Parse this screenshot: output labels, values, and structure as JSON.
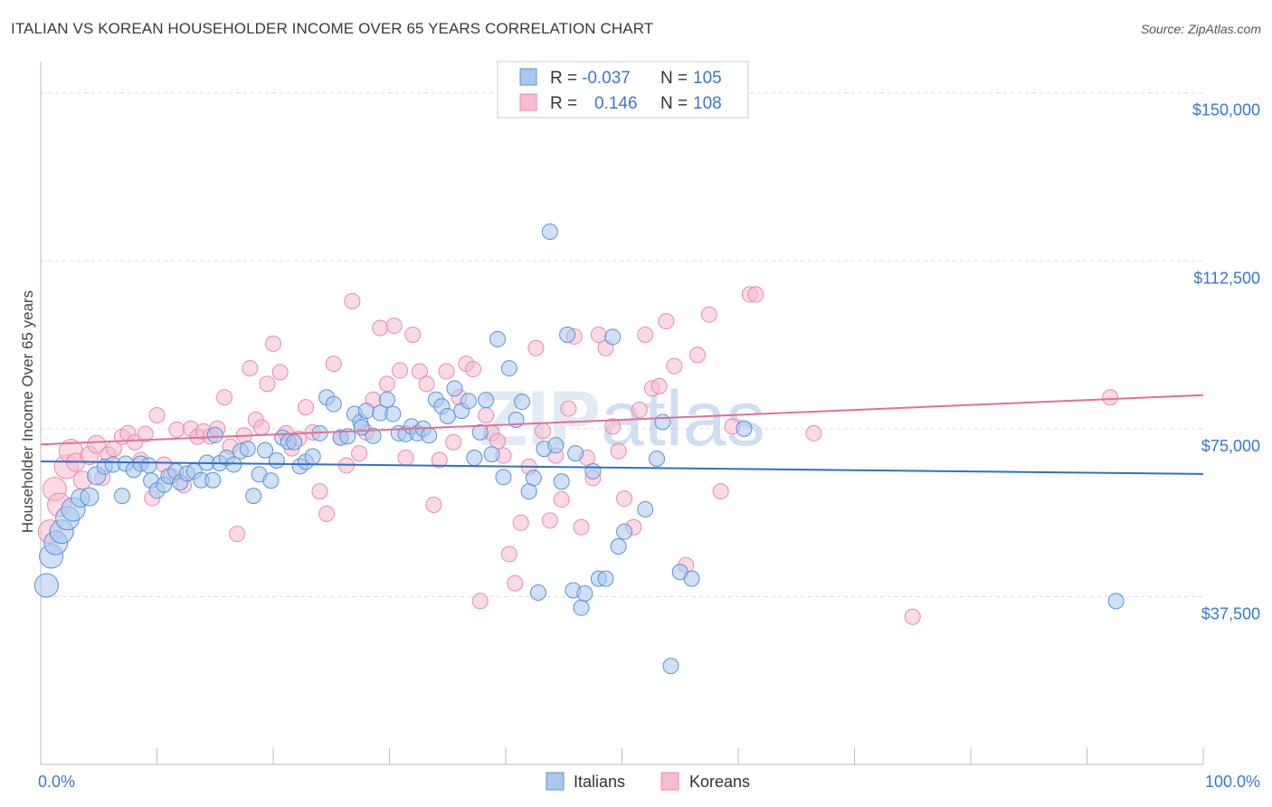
{
  "title": "ITALIAN VS KOREAN HOUSEHOLDER INCOME OVER 65 YEARS CORRELATION CHART",
  "source": "Source: ZipAtlas.com",
  "watermark": "ZIPatlas",
  "legend": {
    "r_label": "R =",
    "n_label": "N =",
    "italians": {
      "r": "-0.037",
      "n": "105"
    },
    "koreans": {
      "r": "0.146",
      "n": "108"
    }
  },
  "bottom_legend": {
    "italians": "Italians",
    "koreans": "Koreans"
  },
  "colors": {
    "italians_fill": "#a9c8f0",
    "italians_stroke": "#5b91d8",
    "italians_line": "#2f6fcb",
    "koreans_fill": "#f7bccf",
    "koreans_stroke": "#e98aab",
    "koreans_line": "#e0709a",
    "tick_text": "#3a78c9",
    "grid": "#dcdcdc"
  },
  "chart_data": {
    "type": "scatter",
    "title": "ITALIAN VS KOREAN HOUSEHOLDER INCOME OVER 65 YEARS CORRELATION CHART",
    "xlabel": "",
    "ylabel": "Householder Income Over 65 years",
    "xlim": [
      0,
      100
    ],
    "ylim": [
      0,
      155000
    ],
    "x_tick_labels": [
      "0.0%",
      "100.0%"
    ],
    "y_ticks": [
      37500,
      75000,
      112500,
      150000
    ],
    "y_tick_labels": [
      "$37,500",
      "$75,000",
      "$112,500",
      "$150,000"
    ],
    "grid": true,
    "series": [
      {
        "name": "Italians",
        "trend": [
          [
            0,
            67700
          ],
          [
            100,
            64900
          ]
        ],
        "points": [
          [
            0.5,
            40000
          ],
          [
            0.9,
            46500
          ],
          [
            1.3,
            49500
          ],
          [
            1.8,
            52000
          ],
          [
            2.3,
            55000
          ],
          [
            2.8,
            57000
          ],
          [
            3.4,
            59500
          ],
          [
            4.2,
            59800
          ],
          [
            4.8,
            64500
          ],
          [
            5.5,
            66500
          ],
          [
            6.2,
            67000
          ],
          [
            7.0,
            60000
          ],
          [
            7.3,
            67200
          ],
          [
            8.0,
            65800
          ],
          [
            8.6,
            67200
          ],
          [
            9.3,
            66800
          ],
          [
            9.5,
            63400
          ],
          [
            10.0,
            61200
          ],
          [
            10.6,
            62500
          ],
          [
            11.0,
            64400
          ],
          [
            11.6,
            65500
          ],
          [
            12.0,
            63000
          ],
          [
            12.6,
            65000
          ],
          [
            13.2,
            65500
          ],
          [
            13.8,
            63500
          ],
          [
            14.3,
            67400
          ],
          [
            14.8,
            63500
          ],
          [
            15.4,
            67300
          ],
          [
            16.0,
            68500
          ],
          [
            16.6,
            67000
          ],
          [
            17.2,
            70000
          ],
          [
            17.8,
            70500
          ],
          [
            18.3,
            60000
          ],
          [
            18.8,
            64800
          ],
          [
            19.3,
            70200
          ],
          [
            19.8,
            63400
          ],
          [
            20.3,
            67900
          ],
          [
            20.8,
            73000
          ],
          [
            21.3,
            72100
          ],
          [
            21.8,
            72000
          ],
          [
            22.3,
            66600
          ],
          [
            22.8,
            67600
          ],
          [
            23.4,
            68800
          ],
          [
            24.0,
            74000
          ],
          [
            24.6,
            82000
          ],
          [
            25.2,
            80500
          ],
          [
            25.8,
            73000
          ],
          [
            26.4,
            73300
          ],
          [
            27.0,
            78300
          ],
          [
            27.5,
            76500
          ],
          [
            28.0,
            79000
          ],
          [
            28.6,
            73400
          ],
          [
            29.2,
            78500
          ],
          [
            29.8,
            81500
          ],
          [
            30.3,
            78300
          ],
          [
            30.8,
            74000
          ],
          [
            31.4,
            73800
          ],
          [
            31.9,
            75500
          ],
          [
            32.4,
            74000
          ],
          [
            32.9,
            75000
          ],
          [
            33.4,
            73500
          ],
          [
            34.0,
            81500
          ],
          [
            34.5,
            80000
          ],
          [
            35.0,
            77800
          ],
          [
            35.6,
            84000
          ],
          [
            36.2,
            79000
          ],
          [
            36.8,
            81200
          ],
          [
            37.3,
            68500
          ],
          [
            37.8,
            74200
          ],
          [
            38.3,
            81400
          ],
          [
            38.8,
            69300
          ],
          [
            39.3,
            95000
          ],
          [
            39.8,
            64200
          ],
          [
            40.3,
            88500
          ],
          [
            40.9,
            77000
          ],
          [
            41.4,
            81000
          ],
          [
            42.0,
            61000
          ],
          [
            42.4,
            64000
          ],
          [
            42.8,
            38400
          ],
          [
            43.3,
            70500
          ],
          [
            43.8,
            119000
          ],
          [
            44.3,
            71300
          ],
          [
            44.8,
            63200
          ],
          [
            45.3,
            96000
          ],
          [
            45.8,
            38900
          ],
          [
            46.5,
            35000
          ],
          [
            46.8,
            38200
          ],
          [
            47.5,
            65500
          ],
          [
            48.0,
            41500
          ],
          [
            48.6,
            41500
          ],
          [
            49.2,
            95500
          ],
          [
            49.7,
            48700
          ],
          [
            50.2,
            52000
          ],
          [
            52.0,
            57000
          ],
          [
            53.0,
            68300
          ],
          [
            53.5,
            76500
          ],
          [
            54.2,
            22000
          ],
          [
            55.0,
            43000
          ],
          [
            56.0,
            41500
          ],
          [
            60.5,
            75000
          ],
          [
            92.5,
            36500
          ],
          [
            27.6,
            75300
          ],
          [
            15.0,
            73600
          ],
          [
            46.0,
            69500
          ]
        ]
      },
      {
        "name": "Koreans",
        "trend": [
          [
            0,
            71500
          ],
          [
            100,
            82500
          ]
        ],
        "points": [
          [
            0.8,
            52000
          ],
          [
            1.2,
            61500
          ],
          [
            1.6,
            58000
          ],
          [
            2.2,
            66500
          ],
          [
            2.6,
            70000
          ],
          [
            3.0,
            67500
          ],
          [
            3.6,
            63500
          ],
          [
            4.2,
            69000
          ],
          [
            4.8,
            71500
          ],
          [
            5.3,
            64000
          ],
          [
            5.8,
            69300
          ],
          [
            6.3,
            70500
          ],
          [
            7.0,
            73200
          ],
          [
            7.5,
            74000
          ],
          [
            8.1,
            72000
          ],
          [
            8.6,
            68000
          ],
          [
            9.0,
            73800
          ],
          [
            9.6,
            59500
          ],
          [
            10.0,
            78000
          ],
          [
            10.6,
            67000
          ],
          [
            11.2,
            64500
          ],
          [
            11.7,
            74800
          ],
          [
            12.3,
            62400
          ],
          [
            12.9,
            75000
          ],
          [
            13.5,
            73200
          ],
          [
            14.0,
            74400
          ],
          [
            14.6,
            73300
          ],
          [
            15.2,
            75000
          ],
          [
            15.8,
            82000
          ],
          [
            16.3,
            71000
          ],
          [
            16.9,
            51500
          ],
          [
            17.5,
            73500
          ],
          [
            18.0,
            88500
          ],
          [
            18.5,
            77000
          ],
          [
            19.0,
            75300
          ],
          [
            19.5,
            85000
          ],
          [
            20.0,
            94000
          ],
          [
            20.6,
            87600
          ],
          [
            21.1,
            74000
          ],
          [
            21.6,
            70600
          ],
          [
            22.2,
            72800
          ],
          [
            22.8,
            79800
          ],
          [
            23.4,
            74200
          ],
          [
            24.0,
            61000
          ],
          [
            24.6,
            56000
          ],
          [
            25.2,
            89500
          ],
          [
            25.8,
            73000
          ],
          [
            26.3,
            66800
          ],
          [
            26.8,
            103500
          ],
          [
            27.4,
            69500
          ],
          [
            28.0,
            74200
          ],
          [
            28.6,
            81500
          ],
          [
            29.2,
            97500
          ],
          [
            29.8,
            85000
          ],
          [
            30.4,
            98000
          ],
          [
            30.9,
            88000
          ],
          [
            31.4,
            68500
          ],
          [
            32.0,
            96000
          ],
          [
            32.6,
            87800
          ],
          [
            33.2,
            85000
          ],
          [
            33.8,
            58000
          ],
          [
            34.3,
            68000
          ],
          [
            34.9,
            87800
          ],
          [
            35.5,
            72000
          ],
          [
            36.0,
            82000
          ],
          [
            36.6,
            89500
          ],
          [
            37.2,
            88300
          ],
          [
            37.8,
            36500
          ],
          [
            38.3,
            78000
          ],
          [
            38.8,
            74000
          ],
          [
            39.3,
            72200
          ],
          [
            39.8,
            69000
          ],
          [
            40.3,
            47000
          ],
          [
            40.8,
            40500
          ],
          [
            41.3,
            54000
          ],
          [
            42.0,
            66500
          ],
          [
            42.6,
            93000
          ],
          [
            43.2,
            74500
          ],
          [
            43.8,
            54500
          ],
          [
            44.3,
            69000
          ],
          [
            44.8,
            59200
          ],
          [
            45.4,
            79500
          ],
          [
            45.9,
            95600
          ],
          [
            46.5,
            53000
          ],
          [
            47.0,
            68500
          ],
          [
            47.5,
            64000
          ],
          [
            48.0,
            96000
          ],
          [
            48.6,
            93000
          ],
          [
            49.2,
            75500
          ],
          [
            49.7,
            70000
          ],
          [
            50.2,
            59400
          ],
          [
            51.0,
            53000
          ],
          [
            51.5,
            79200
          ],
          [
            52.0,
            96000
          ],
          [
            52.6,
            84000
          ],
          [
            53.2,
            84500
          ],
          [
            53.8,
            99000
          ],
          [
            54.5,
            89000
          ],
          [
            55.5,
            44500
          ],
          [
            56.5,
            91500
          ],
          [
            57.5,
            100500
          ],
          [
            58.5,
            61000
          ],
          [
            59.5,
            75500
          ],
          [
            61.0,
            105000
          ],
          [
            61.5,
            105000
          ],
          [
            66.5,
            74000
          ],
          [
            75.0,
            33000
          ],
          [
            92.0,
            82000
          ]
        ]
      }
    ]
  }
}
